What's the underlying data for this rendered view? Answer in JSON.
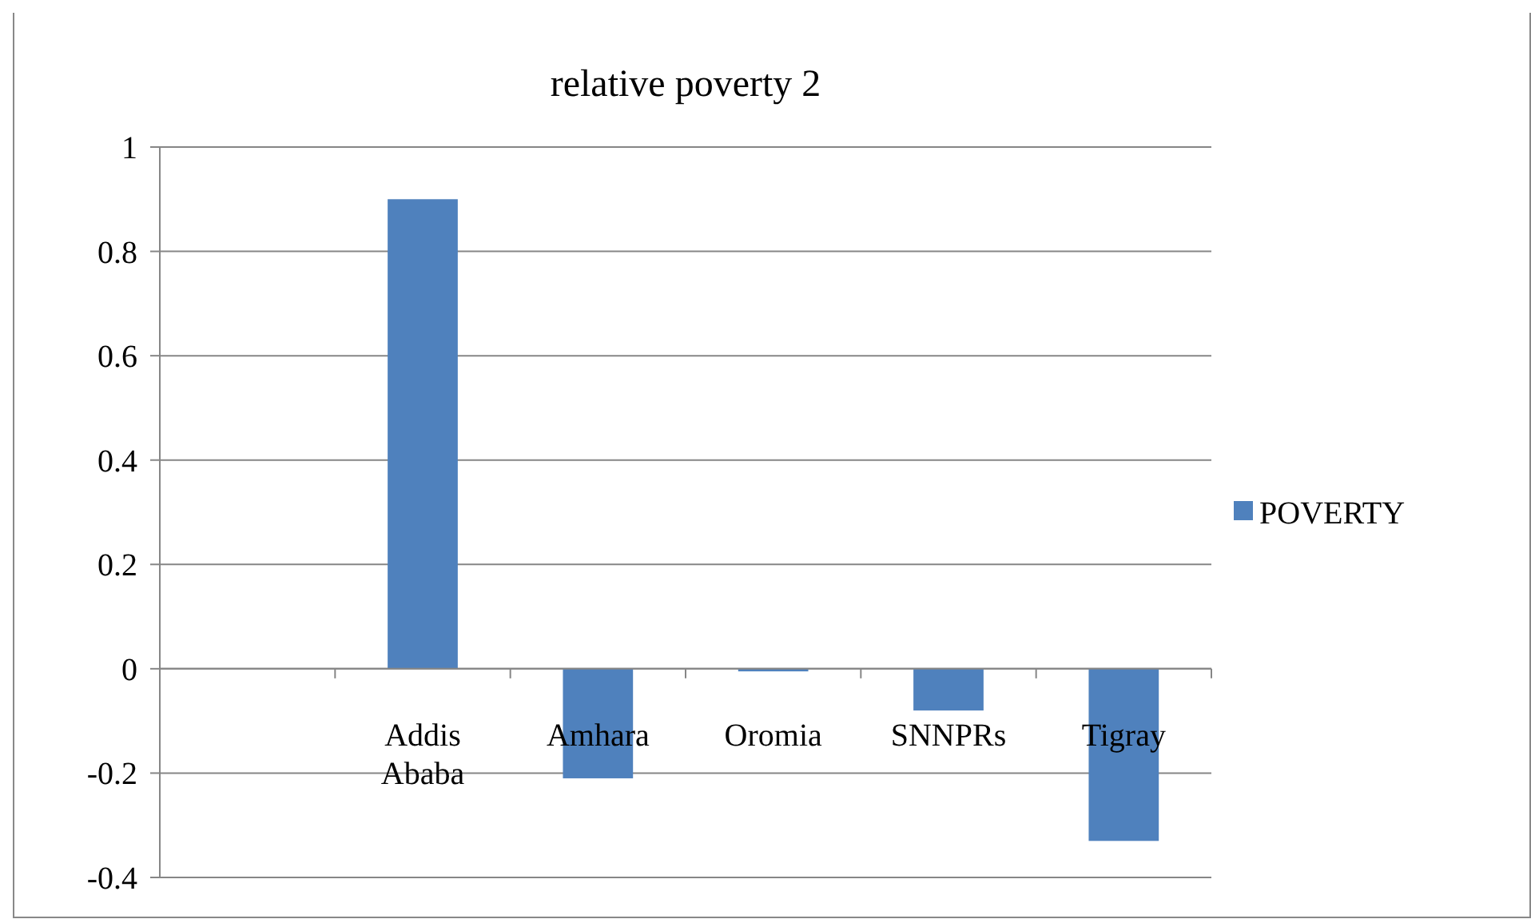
{
  "chart_data": {
    "type": "bar",
    "title": "relative poverty 2",
    "categories": [
      null,
      "Addis Ababa",
      "Amhara",
      "Oromia",
      "SNNPRs",
      "Tigray"
    ],
    "series": [
      {
        "name": "POVERTY",
        "color": "#4f81bd",
        "values": [
          null,
          0.9,
          -0.21,
          -0.005,
          -0.08,
          -0.33
        ]
      }
    ],
    "ylim": [
      -0.4,
      1
    ],
    "yticks": [
      -0.4,
      -0.2,
      0,
      0.2,
      0.4,
      0.6,
      0.8,
      1
    ],
    "grid": "y",
    "legend": "right"
  }
}
